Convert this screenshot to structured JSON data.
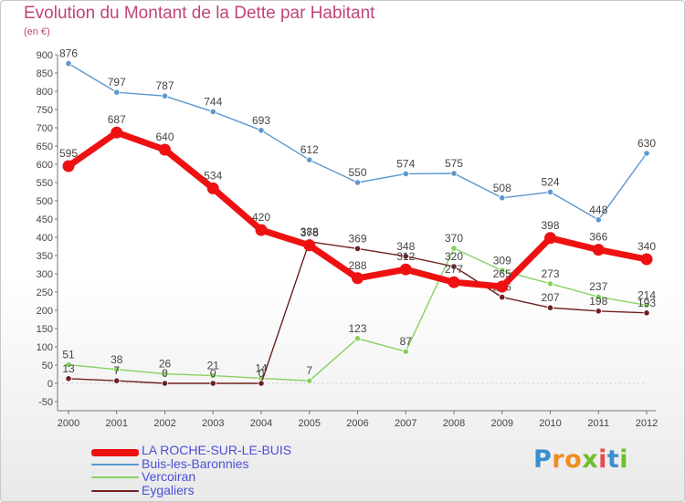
{
  "title": "Evolution du Montant de la Dette par Habitant",
  "unit": "(en €)",
  "logo": {
    "letters": [
      {
        "ch": "P",
        "color": "#3a8fd0"
      },
      {
        "ch": "r",
        "color": "#f08c1e"
      },
      {
        "ch": "o",
        "color": "#f08c1e"
      },
      {
        "ch": "x",
        "color": "#6cbf2a"
      },
      {
        "ch": "i",
        "color": "#e84b4b"
      },
      {
        "ch": "t",
        "color": "#3a8fd0"
      },
      {
        "ch": "i",
        "color": "#6cbf2a"
      }
    ]
  },
  "chart_data": {
    "type": "line",
    "title": "Evolution du Montant de la Dette par Habitant",
    "ylabel": "(en €)",
    "xlabel": "",
    "ylim": [
      -50,
      900
    ],
    "yticks": [
      -50,
      0,
      50,
      100,
      150,
      200,
      250,
      300,
      350,
      400,
      450,
      500,
      550,
      600,
      650,
      700,
      750,
      800,
      850,
      900
    ],
    "categories": [
      "2000",
      "2001",
      "2002",
      "2003",
      "2004",
      "2005",
      "2006",
      "2007",
      "2008",
      "2009",
      "2010",
      "2011",
      "2012"
    ],
    "grid": false,
    "legend_position": "bottom-left",
    "series": [
      {
        "name": "Buis-les-Baronnies",
        "color": "#5b98cf",
        "weight": "thin",
        "values": [
          876,
          797,
          787,
          744,
          693,
          612,
          550,
          574,
          575,
          508,
          524,
          448,
          630
        ],
        "labels": [
          "876",
          "797",
          "787",
          "744",
          "693",
          "612",
          "550",
          "574",
          "575",
          "508",
          "524",
          "448",
          "630"
        ]
      },
      {
        "name": "Vercoiran",
        "color": "#86d160",
        "weight": "thin",
        "values": [
          51,
          38,
          26,
          21,
          14,
          7,
          123,
          87,
          370,
          309,
          273,
          237,
          214
        ],
        "labels": [
          "51",
          "38",
          "26",
          "21",
          "14",
          "7",
          "123",
          "87",
          "370",
          "309",
          "273",
          "237",
          "214"
        ]
      },
      {
        "name": "Eygaliers",
        "color": "#6e2020",
        "weight": "thin",
        "values": [
          13,
          7,
          0,
          0,
          0,
          388,
          369,
          348,
          320,
          236,
          207,
          198,
          193
        ],
        "labels": [
          "13",
          "7",
          "0",
          "0",
          "0",
          "388",
          "369",
          "348",
          "320",
          "236",
          "207",
          "198",
          "193"
        ]
      },
      {
        "name": "LA ROCHE-SUR-LE-BUIS",
        "color": "#ee1111",
        "weight": "bold",
        "values": [
          595,
          687,
          640,
          534,
          420,
          378,
          288,
          312,
          277,
          265,
          398,
          366,
          340
        ],
        "labels": [
          "595",
          "687",
          "640",
          "534",
          "420",
          "378",
          "288",
          "312",
          "277",
          "265",
          "398",
          "366",
          "340"
        ]
      }
    ]
  },
  "legend": [
    {
      "name": "LA ROCHE-SUR-LE-BUIS",
      "color": "#ee1111",
      "weight": "bold"
    },
    {
      "name": "Buis-les-Baronnies",
      "color": "#5b98cf",
      "weight": "thin"
    },
    {
      "name": "Vercoiran",
      "color": "#86d160",
      "weight": "thin"
    },
    {
      "name": "Eygaliers",
      "color": "#6e2020",
      "weight": "thin"
    }
  ]
}
